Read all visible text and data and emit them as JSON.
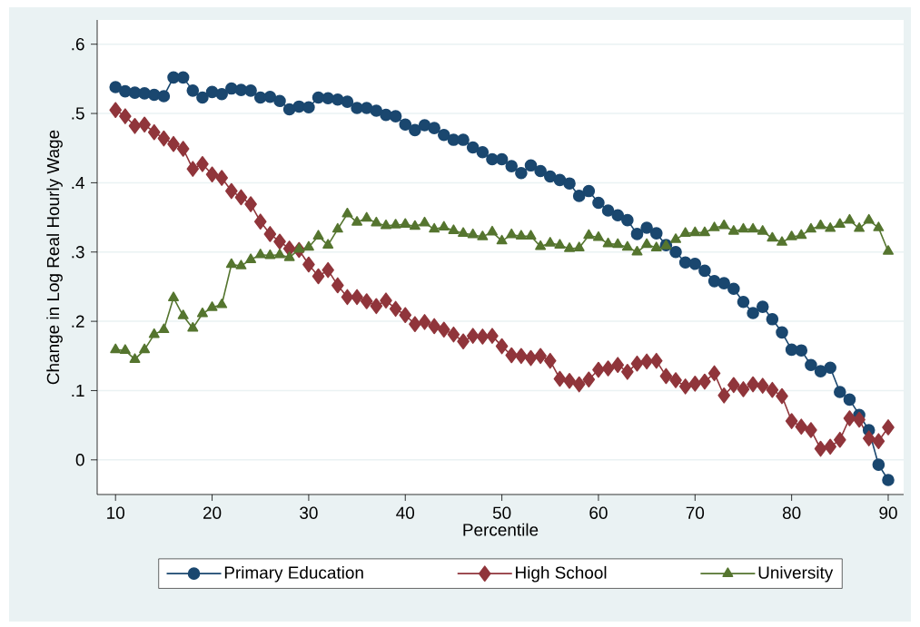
{
  "chart_data": {
    "type": "line",
    "xlabel": "Percentile",
    "ylabel": "Change in Log Real Hourly Wage",
    "x": [
      10,
      11,
      12,
      13,
      14,
      15,
      16,
      17,
      18,
      19,
      20,
      21,
      22,
      23,
      24,
      25,
      26,
      27,
      28,
      29,
      30,
      31,
      32,
      33,
      34,
      35,
      36,
      37,
      38,
      39,
      40,
      41,
      42,
      43,
      44,
      45,
      46,
      47,
      48,
      49,
      50,
      51,
      52,
      53,
      54,
      55,
      56,
      57,
      58,
      59,
      60,
      61,
      62,
      63,
      64,
      65,
      66,
      67,
      68,
      69,
      70,
      71,
      72,
      73,
      74,
      75,
      76,
      77,
      78,
      79,
      80,
      81,
      82,
      83,
      84,
      85,
      86,
      87,
      88,
      89,
      90
    ],
    "series": [
      {
        "name": "Primary Education",
        "color": "#1a476f",
        "marker": "circle",
        "values": [
          0.538,
          0.532,
          0.53,
          0.529,
          0.527,
          0.525,
          0.552,
          0.552,
          0.533,
          0.523,
          0.531,
          0.528,
          0.536,
          0.534,
          0.533,
          0.523,
          0.524,
          0.518,
          0.506,
          0.51,
          0.509,
          0.523,
          0.522,
          0.52,
          0.517,
          0.508,
          0.508,
          0.504,
          0.498,
          0.496,
          0.484,
          0.476,
          0.483,
          0.479,
          0.469,
          0.462,
          0.462,
          0.451,
          0.444,
          0.434,
          0.434,
          0.424,
          0.414,
          0.425,
          0.417,
          0.409,
          0.404,
          0.399,
          0.381,
          0.388,
          0.371,
          0.36,
          0.353,
          0.346,
          0.326,
          0.335,
          0.327,
          0.31,
          0.3,
          0.285,
          0.283,
          0.273,
          0.258,
          0.255,
          0.247,
          0.228,
          0.212,
          0.221,
          0.203,
          0.184,
          0.159,
          0.158,
          0.137,
          0.128,
          0.133,
          0.098,
          0.087,
          0.065,
          0.043,
          -0.007,
          -0.029
        ]
      },
      {
        "name": "High School",
        "color": "#90353b",
        "marker": "diamond",
        "values": [
          0.505,
          0.496,
          0.482,
          0.484,
          0.473,
          0.464,
          0.456,
          0.449,
          0.42,
          0.427,
          0.412,
          0.407,
          0.388,
          0.379,
          0.369,
          0.344,
          0.326,
          0.315,
          0.305,
          0.303,
          0.282,
          0.265,
          0.274,
          0.252,
          0.235,
          0.235,
          0.229,
          0.222,
          0.23,
          0.218,
          0.209,
          0.196,
          0.199,
          0.193,
          0.188,
          0.181,
          0.171,
          0.179,
          0.178,
          0.179,
          0.164,
          0.151,
          0.15,
          0.147,
          0.15,
          0.143,
          0.117,
          0.114,
          0.109,
          0.116,
          0.13,
          0.132,
          0.137,
          0.127,
          0.139,
          0.142,
          0.143,
          0.121,
          0.115,
          0.106,
          0.11,
          0.113,
          0.125,
          0.093,
          0.108,
          0.102,
          0.109,
          0.107,
          0.101,
          0.092,
          0.056,
          0.048,
          0.043,
          0.016,
          0.019,
          0.029,
          0.06,
          0.058,
          0.031,
          0.027,
          0.047
        ]
      },
      {
        "name": "University",
        "color": "#55752f",
        "marker": "triangle",
        "values": [
          0.159,
          0.158,
          0.145,
          0.159,
          0.181,
          0.188,
          0.234,
          0.208,
          0.19,
          0.211,
          0.22,
          0.224,
          0.282,
          0.28,
          0.289,
          0.296,
          0.295,
          0.296,
          0.292,
          0.304,
          0.307,
          0.323,
          0.31,
          0.333,
          0.355,
          0.343,
          0.349,
          0.342,
          0.338,
          0.339,
          0.34,
          0.337,
          0.342,
          0.333,
          0.336,
          0.331,
          0.327,
          0.325,
          0.322,
          0.329,
          0.316,
          0.325,
          0.323,
          0.323,
          0.308,
          0.313,
          0.31,
          0.305,
          0.306,
          0.324,
          0.321,
          0.312,
          0.311,
          0.307,
          0.3,
          0.311,
          0.306,
          0.309,
          0.318,
          0.327,
          0.328,
          0.328,
          0.335,
          0.338,
          0.33,
          0.333,
          0.333,
          0.33,
          0.32,
          0.314,
          0.322,
          0.324,
          0.333,
          0.338,
          0.334,
          0.34,
          0.346,
          0.334,
          0.346,
          0.335,
          0.301
        ]
      }
    ],
    "xlim": [
      8.1,
      91.6
    ],
    "ylim": [
      -0.05,
      0.635
    ],
    "xticks": [
      10,
      20,
      30,
      40,
      50,
      60,
      70,
      80,
      90
    ],
    "yticks": [
      {
        "value": 0,
        "label": "0"
      },
      {
        "value": 0.1,
        "label": ".1"
      },
      {
        "value": 0.2,
        "label": ".2"
      },
      {
        "value": 0.3,
        "label": ".3"
      },
      {
        "value": 0.4,
        "label": ".4"
      },
      {
        "value": 0.5,
        "label": ".5"
      },
      {
        "value": 0.6,
        "label": ".6"
      }
    ],
    "grid": "y",
    "legend": "bottom",
    "line_style": "solid"
  }
}
